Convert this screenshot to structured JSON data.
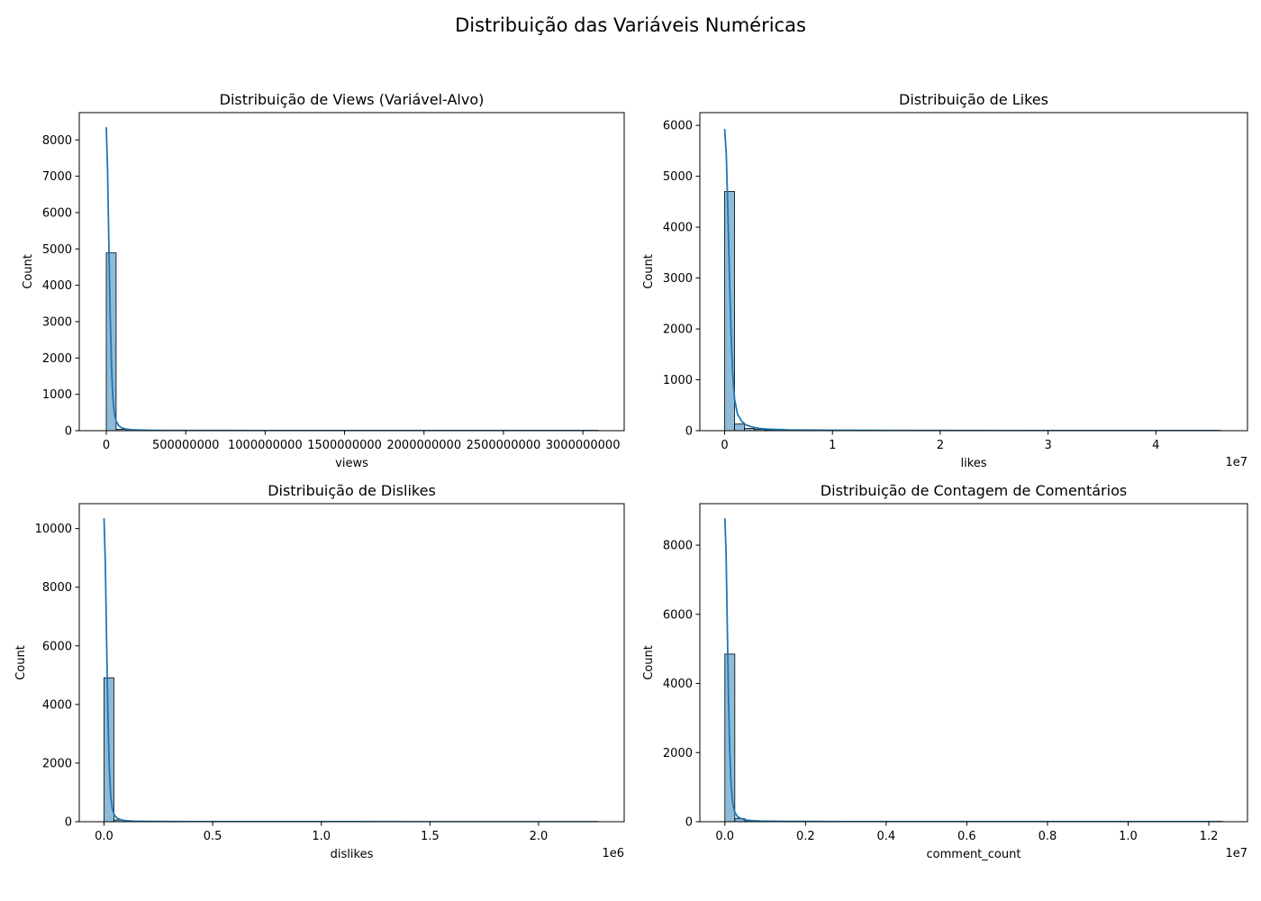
{
  "suptitle": "Distribuição das Variáveis Numéricas",
  "colors": {
    "bar_fill": "#1f77b4",
    "bar_opacity": 0.5,
    "bar_edge": "#000000",
    "kde_line": "#1f77b4"
  },
  "chart_data": [
    {
      "type": "histogram",
      "title": "Distribuição de Views (Variável-Alvo)",
      "xlabel": "views",
      "ylabel": "Count",
      "x_offset_label": "",
      "xlim": [
        -170000000,
        3260000000
      ],
      "ylim": [
        0,
        8750
      ],
      "xticks": [
        0,
        500000000,
        1000000000,
        1500000000,
        2000000000,
        2500000000,
        3000000000
      ],
      "xtick_labels": [
        "0",
        "500000000",
        "1000000000",
        "1500000000",
        "2000000000",
        "2500000000",
        "3000000000"
      ],
      "yticks": [
        0,
        1000,
        2000,
        3000,
        4000,
        5000,
        6000,
        7000,
        8000
      ],
      "bins": {
        "start": 0,
        "width": 62000000,
        "counts": [
          4890,
          35,
          12,
          6,
          4,
          3,
          2,
          2,
          1,
          1,
          1,
          1,
          1,
          1,
          1,
          1,
          0,
          1,
          0,
          0,
          0,
          0,
          0,
          0,
          0,
          0,
          0,
          0,
          0,
          0,
          0,
          0,
          0,
          0,
          0,
          0,
          0,
          0,
          0,
          0,
          0,
          0,
          0,
          0,
          0,
          0,
          0,
          0,
          0,
          1
        ]
      },
      "kde": {
        "x": [
          0,
          8000000,
          16000000,
          24000000,
          32000000,
          40000000,
          50000000,
          62000000,
          80000000,
          100000000,
          130000000,
          160000000,
          200000000,
          300000000,
          500000000,
          1000000000,
          2000000000,
          3100000000
        ],
        "y": [
          8350,
          7200,
          5200,
          3300,
          1900,
          1000,
          500,
          260,
          130,
          70,
          40,
          25,
          18,
          10,
          6,
          3,
          2,
          1
        ]
      }
    },
    {
      "type": "histogram",
      "title": "Distribuição de Likes",
      "xlabel": "likes",
      "ylabel": "Count",
      "x_offset_label": "1e7",
      "xlim": [
        -2300000,
        48500000
      ],
      "ylim": [
        0,
        6250
      ],
      "xticks": [
        0,
        10000000,
        20000000,
        30000000,
        40000000
      ],
      "xtick_labels": [
        "0",
        "1",
        "2",
        "3",
        "4"
      ],
      "yticks": [
        0,
        1000,
        2000,
        3000,
        4000,
        5000,
        6000
      ],
      "bins": {
        "start": 0,
        "width": 920000,
        "counts": [
          4700,
          130,
          45,
          25,
          15,
          10,
          6,
          4,
          3,
          2,
          2,
          1,
          1,
          1,
          1,
          1,
          1,
          0,
          1,
          0,
          0,
          0,
          0,
          0,
          0,
          0,
          0,
          0,
          0,
          0,
          0,
          0,
          0,
          0,
          0,
          0,
          0,
          0,
          0,
          0,
          0,
          0,
          0,
          0,
          0,
          0,
          0,
          0,
          0,
          1
        ]
      },
      "kde": {
        "x": [
          0,
          150000,
          300000,
          450000,
          600000,
          750000,
          920000,
          1200000,
          1600000,
          2000000,
          2600000,
          3200000,
          4000000,
          6000000,
          10000000,
          20000000,
          30000000,
          46000000
        ],
        "y": [
          5930,
          5450,
          4300,
          3000,
          1900,
          1100,
          620,
          320,
          180,
          110,
          70,
          45,
          30,
          15,
          8,
          3,
          2,
          1
        ]
      }
    },
    {
      "type": "histogram",
      "title": "Distribuição de Dislikes",
      "xlabel": "dislikes",
      "ylabel": "Count",
      "x_offset_label": "1e6",
      "xlim": [
        -114000,
        2394000
      ],
      "ylim": [
        0,
        10850
      ],
      "xticks": [
        0,
        500000,
        1000000,
        1500000,
        2000000
      ],
      "xtick_labels": [
        "0.0",
        "0.5",
        "1.0",
        "1.5",
        "2.0"
      ],
      "yticks": [
        0,
        2000,
        4000,
        6000,
        8000,
        10000
      ],
      "bins": {
        "start": 0,
        "width": 45500,
        "counts": [
          4910,
          60,
          15,
          7,
          4,
          3,
          2,
          1,
          1,
          1,
          1,
          1,
          0,
          1,
          0,
          0,
          0,
          0,
          0,
          0,
          0,
          0,
          0,
          0,
          0,
          0,
          0,
          0,
          0,
          0,
          0,
          0,
          0,
          0,
          0,
          0,
          0,
          0,
          0,
          0,
          0,
          0,
          0,
          0,
          0,
          0,
          0,
          0,
          0,
          1
        ]
      },
      "kde": {
        "x": [
          0,
          6000,
          12000,
          18000,
          24000,
          30000,
          38000,
          48000,
          60000,
          80000,
          100000,
          140000,
          200000,
          400000,
          800000,
          1500000,
          2275000
        ],
        "y": [
          10350,
          8800,
          6100,
          3600,
          1900,
          950,
          450,
          220,
          120,
          60,
          35,
          20,
          12,
          5,
          3,
          1,
          1
        ]
      }
    },
    {
      "type": "histogram",
      "title": "Distribuição de Contagem de Comentários",
      "xlabel": "comment_count",
      "ylabel": "Count",
      "x_offset_label": "1e7",
      "xlim": [
        -620000,
        12960000
      ],
      "ylim": [
        0,
        9200
      ],
      "xticks": [
        0,
        2000000,
        4000000,
        6000000,
        8000000,
        10000000,
        12000000
      ],
      "xtick_labels": [
        "0.0",
        "0.2",
        "0.4",
        "0.6",
        "0.8",
        "1.0",
        "1.2"
      ],
      "yticks": [
        0,
        2000,
        4000,
        6000,
        8000
      ],
      "bins": {
        "start": 0,
        "width": 247000,
        "counts": [
          4850,
          90,
          30,
          14,
          8,
          5,
          3,
          2,
          2,
          1,
          1,
          1,
          1,
          1,
          0,
          1,
          0,
          0,
          0,
          0,
          0,
          0,
          0,
          0,
          0,
          0,
          0,
          0,
          0,
          0,
          0,
          0,
          0,
          0,
          0,
          0,
          0,
          0,
          0,
          0,
          0,
          0,
          0,
          0,
          0,
          0,
          0,
          0,
          0,
          1
        ]
      },
      "kde": {
        "x": [
          0,
          30000,
          60000,
          90000,
          120000,
          150000,
          190000,
          247000,
          320000,
          420000,
          550000,
          700000,
          900000,
          1500000,
          3000000,
          6000000,
          9000000,
          12350000
        ],
        "y": [
          8780,
          7800,
          5700,
          3600,
          2100,
          1150,
          560,
          270,
          140,
          80,
          45,
          28,
          18,
          9,
          4,
          2,
          1,
          1
        ]
      }
    }
  ]
}
